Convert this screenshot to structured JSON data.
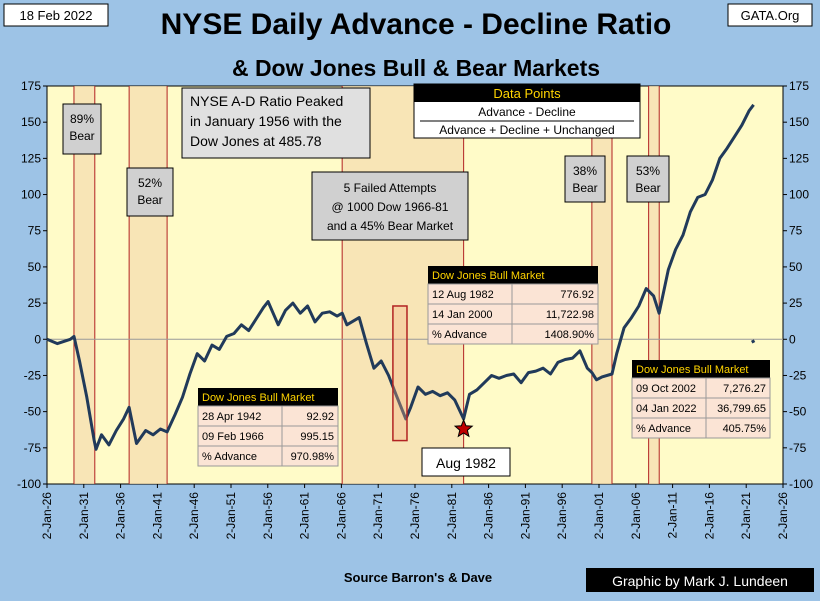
{
  "header": {
    "date": "18 Feb 2022",
    "source": "GATA.Org",
    "title": "NYSE Daily Advance - Decline Ratio",
    "subtitle": "& Dow Jones Bull & Bear Markets"
  },
  "footer": {
    "source_note": "Source Barron's & Dave",
    "credit": "Graphic by Mark J. Lundeen"
  },
  "colors": {
    "background": "#9dc3e6",
    "plot_background": "#fffbc8",
    "series_line": "#213a5a",
    "bear_band_fill": "#f5deb0",
    "bear_band_edge": "#b22222",
    "annotation_fill": "#d0d0d0",
    "table_header": "#000000",
    "table_header_text": "#ffd400",
    "table_cell": "#fbe4d5"
  },
  "chart_data": {
    "type": "line",
    "title": "NYSE Daily Advance - Decline Ratio",
    "ylim": [
      -100,
      175
    ],
    "yticks": [
      -100,
      -75,
      -50,
      -25,
      0,
      25,
      50,
      75,
      100,
      125,
      150,
      175
    ],
    "xlim": [
      "1926-01-02",
      "2026-01-02"
    ],
    "xticks": [
      "2-Jan-26",
      "2-Jan-31",
      "2-Jan-36",
      "2-Jan-41",
      "2-Jan-46",
      "2-Jan-51",
      "2-Jan-56",
      "2-Jan-61",
      "2-Jan-66",
      "2-Jan-71",
      "2-Jan-76",
      "2-Jan-81",
      "2-Jan-86",
      "2-Jan-91",
      "2-Jan-96",
      "2-Jan-01",
      "2-Jan-06",
      "2-Jan-11",
      "2-Jan-16",
      "2-Jan-21",
      "2-Jan-26"
    ],
    "grid": false,
    "series": [
      {
        "points": [
          [
            "1926-01-02",
            0
          ],
          [
            "1927-06-01",
            -3
          ],
          [
            "1929-03-01",
            0
          ],
          [
            "1929-09-01",
            2
          ],
          [
            "1930-06-01",
            -15
          ],
          [
            "1931-06-01",
            -40
          ],
          [
            "1932-06-01",
            -70
          ],
          [
            "1932-09-01",
            -76
          ],
          [
            "1933-06-01",
            -66
          ],
          [
            "1934-06-01",
            -73
          ],
          [
            "1935-06-01",
            -63
          ],
          [
            "1936-06-01",
            -55
          ],
          [
            "1937-03-01",
            -47
          ],
          [
            "1938-03-01",
            -72
          ],
          [
            "1939-06-01",
            -63
          ],
          [
            "1940-06-01",
            -66
          ],
          [
            "1941-06-01",
            -62
          ],
          [
            "1942-04-28",
            -64
          ],
          [
            "1943-06-01",
            -52
          ],
          [
            "1944-06-01",
            -40
          ],
          [
            "1945-06-01",
            -24
          ],
          [
            "1946-06-01",
            -10
          ],
          [
            "1947-06-01",
            -15
          ],
          [
            "1948-06-01",
            -4
          ],
          [
            "1949-06-01",
            -7
          ],
          [
            "1950-06-01",
            2
          ],
          [
            "1951-06-01",
            4
          ],
          [
            "1952-06-01",
            10
          ],
          [
            "1953-06-01",
            6
          ],
          [
            "1954-06-01",
            14
          ],
          [
            "1955-06-01",
            22
          ],
          [
            "1956-01-15",
            26
          ],
          [
            "1957-06-01",
            10
          ],
          [
            "1958-06-01",
            20
          ],
          [
            "1959-06-01",
            25
          ],
          [
            "1960-06-01",
            18
          ],
          [
            "1961-06-01",
            23
          ],
          [
            "1962-06-01",
            12
          ],
          [
            "1963-06-01",
            18
          ],
          [
            "1964-06-01",
            19
          ],
          [
            "1965-06-01",
            16
          ],
          [
            "1966-02-09",
            18
          ],
          [
            "1966-10-01",
            10
          ],
          [
            "1968-06-01",
            15
          ],
          [
            "1969-06-01",
            -3
          ],
          [
            "1970-06-01",
            -20
          ],
          [
            "1971-06-01",
            -15
          ],
          [
            "1972-06-01",
            -25
          ],
          [
            "1973-06-01",
            -38
          ],
          [
            "1974-10-01",
            -55
          ],
          [
            "1975-06-01",
            -47
          ],
          [
            "1976-06-01",
            -33
          ],
          [
            "1977-06-01",
            -38
          ],
          [
            "1978-06-01",
            -36
          ],
          [
            "1979-06-01",
            -39
          ],
          [
            "1980-06-01",
            -37
          ],
          [
            "1981-06-01",
            -42
          ],
          [
            "1982-08-12",
            -55
          ],
          [
            "1983-06-01",
            -38
          ],
          [
            "1984-06-01",
            -35
          ],
          [
            "1985-06-01",
            -30
          ],
          [
            "1986-06-01",
            -25
          ],
          [
            "1987-06-01",
            -27
          ],
          [
            "1988-06-01",
            -25
          ],
          [
            "1989-06-01",
            -24
          ],
          [
            "1990-06-01",
            -30
          ],
          [
            "1991-06-01",
            -23
          ],
          [
            "1992-06-01",
            -22
          ],
          [
            "1993-06-01",
            -20
          ],
          [
            "1994-06-01",
            -24
          ],
          [
            "1995-06-01",
            -16
          ],
          [
            "1996-06-01",
            -14
          ],
          [
            "1997-06-01",
            -13
          ],
          [
            "1998-06-01",
            -8
          ],
          [
            "1999-06-01",
            -20
          ],
          [
            "2000-01-14",
            -23
          ],
          [
            "2000-09-01",
            -28
          ],
          [
            "2001-06-01",
            -26
          ],
          [
            "2002-10-09",
            -24
          ],
          [
            "2003-06-01",
            -10
          ],
          [
            "2004-06-01",
            8
          ],
          [
            "2005-06-01",
            15
          ],
          [
            "2006-06-01",
            23
          ],
          [
            "2007-06-01",
            35
          ],
          [
            "2008-06-01",
            30
          ],
          [
            "2009-03-01",
            18
          ],
          [
            "2010-06-01",
            48
          ],
          [
            "2011-06-01",
            62
          ],
          [
            "2012-06-01",
            72
          ],
          [
            "2013-06-01",
            88
          ],
          [
            "2014-06-01",
            98
          ],
          [
            "2015-06-01",
            100
          ],
          [
            "2016-06-01",
            110
          ],
          [
            "2017-06-01",
            125
          ],
          [
            "2018-06-01",
            132
          ],
          [
            "2019-06-01",
            140
          ],
          [
            "2020-06-01",
            148
          ],
          [
            "2021-06-01",
            158
          ],
          [
            "2022-01-04",
            162
          ]
        ]
      }
    ],
    "short_segment": [
      [
        "2021-10-01",
        -2
      ],
      [
        "2022-02-18",
        -1
      ]
    ],
    "marker": {
      "x": "1982-08-12",
      "y": -62,
      "label": "Aug 1982"
    },
    "bear_bands": [
      {
        "start": "1929-09-01",
        "end": "1932-07-01",
        "label": "89%\nBear"
      },
      {
        "start": "1937-03-01",
        "end": "1942-04-28",
        "label": "52%\nBear"
      },
      {
        "start": "1966-02-09",
        "end": "1982-08-12"
      },
      {
        "start": "2000-01-14",
        "end": "2002-10-09",
        "label": "38%\nBear"
      },
      {
        "start": "2007-10-01",
        "end": "2009-03-09",
        "label": "53%\nBear"
      }
    ],
    "bear_market_box": {
      "start": "1973-01-01",
      "end": "1974-12-01",
      "ymin": -70,
      "ymax": 23
    },
    "annotations": {
      "peak_note": "NYSE A-D Ratio Peaked\nin January 1956 with the\nDow Jones at 485.78",
      "failed_attempts": "5 Failed Attempts\n@ 1000 Dow 1966-81\nand a 45% Bear Market"
    },
    "data_points_box": {
      "title": "Data Points",
      "numerator": "Advance - Decline",
      "denominator": "Advance + Decline + Unchanged"
    },
    "tables": [
      {
        "header": "Dow Jones Bull Market",
        "rows": [
          [
            "28 Apr 1942",
            "92.92"
          ],
          [
            "09 Feb 1966",
            "995.15"
          ],
          [
            "% Advance",
            "970.98%"
          ]
        ]
      },
      {
        "header": "Dow Jones Bull Market",
        "rows": [
          [
            "12 Aug 1982",
            "776.92"
          ],
          [
            "14 Jan 2000",
            "11,722.98"
          ],
          [
            "% Advance",
            "1408.90%"
          ]
        ]
      },
      {
        "header": "Dow Jones Bull Market",
        "rows": [
          [
            "09 Oct 2002",
            "7,276.27"
          ],
          [
            "04 Jan 2022",
            "36,799.65"
          ],
          [
            "% Advance",
            "405.75%"
          ]
        ]
      }
    ]
  }
}
